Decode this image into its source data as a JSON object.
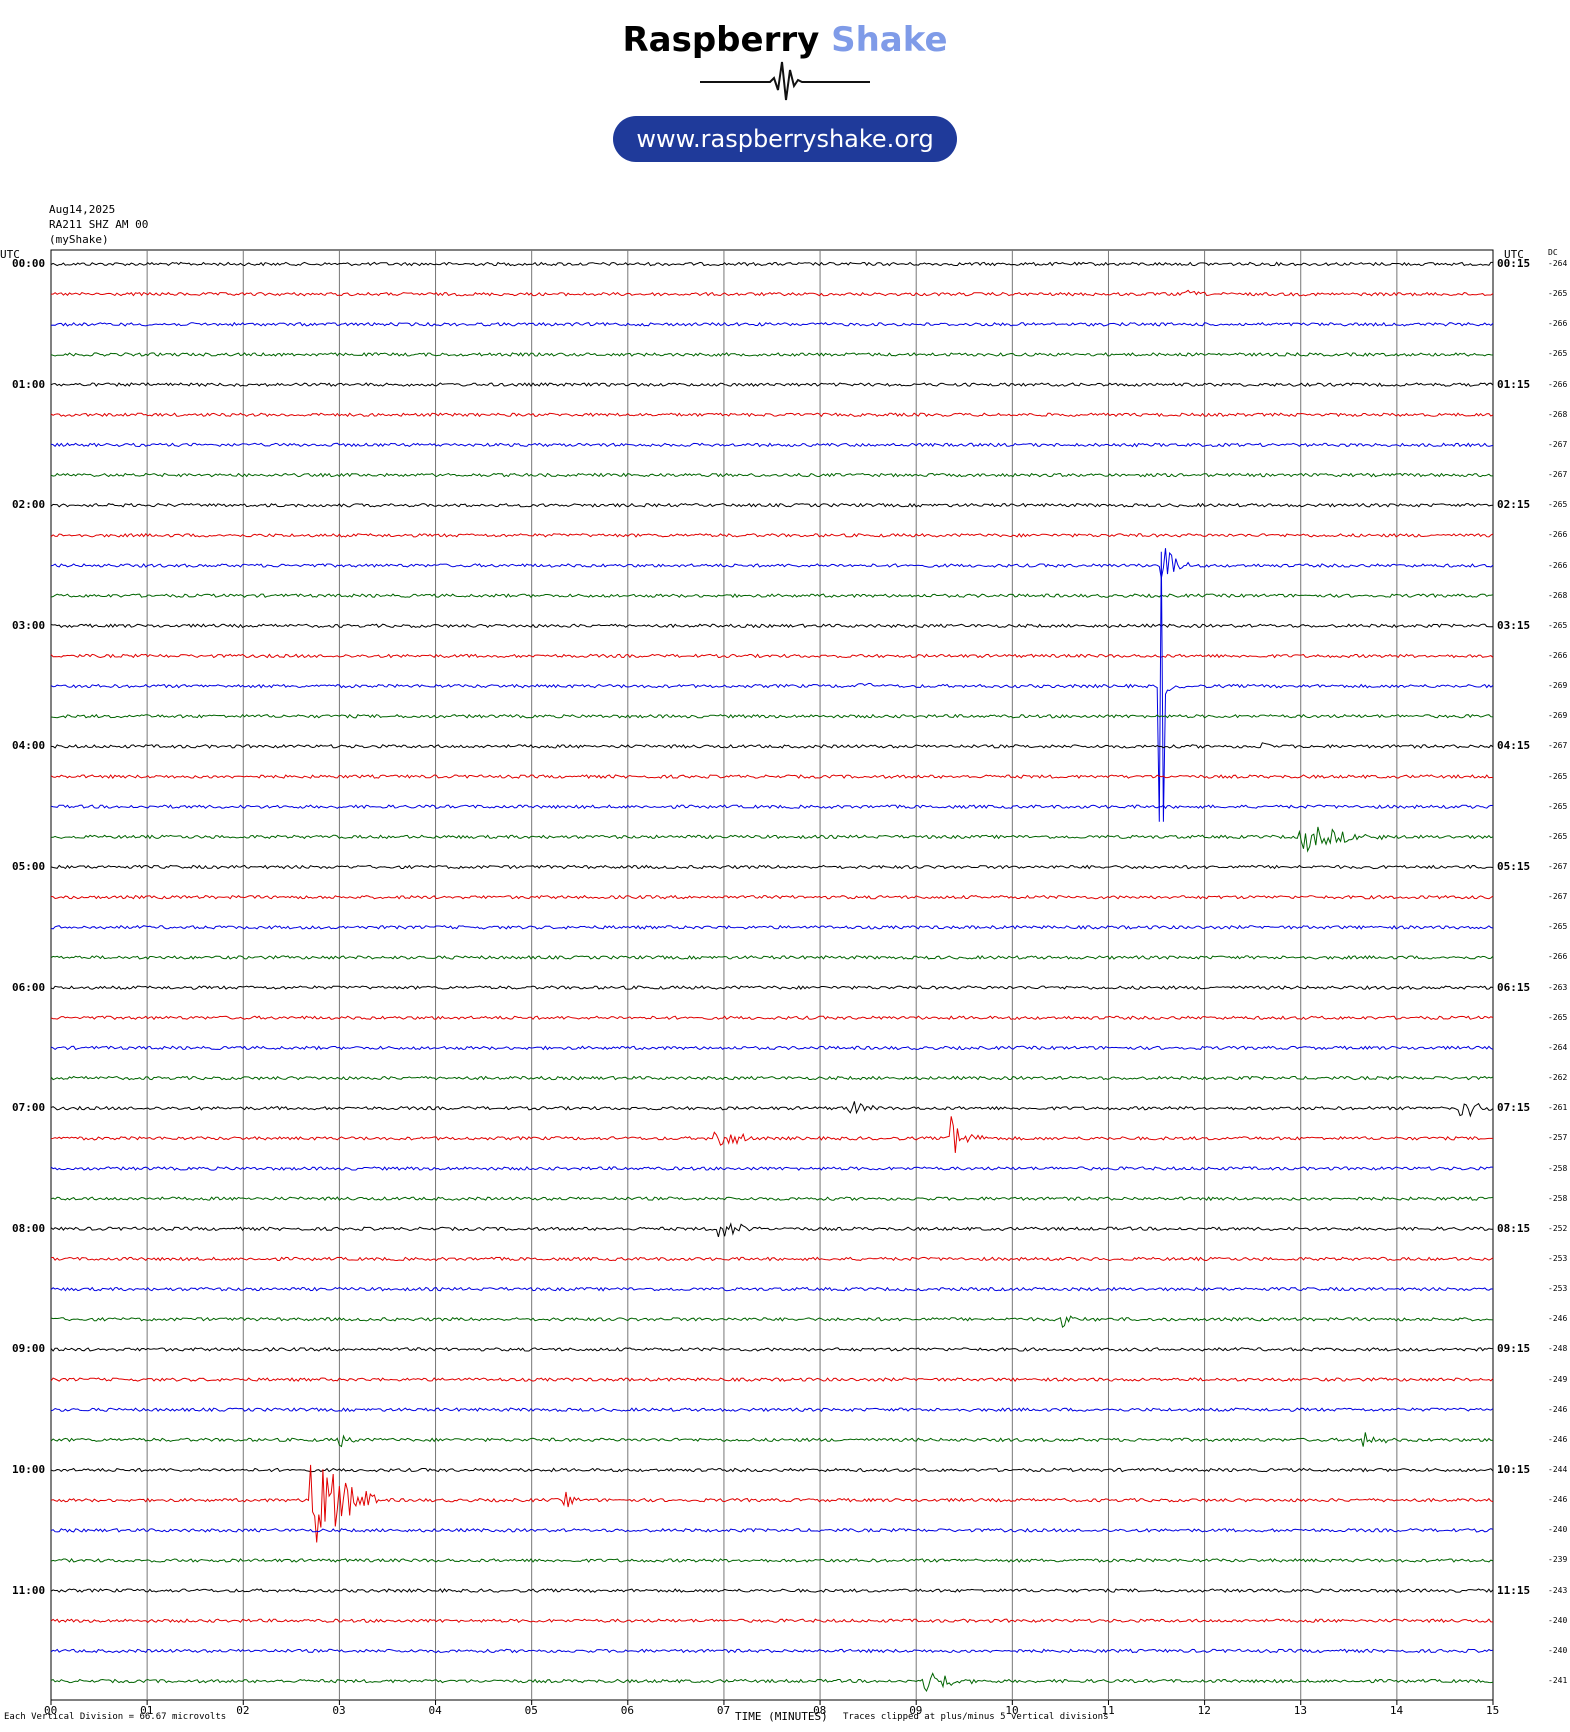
{
  "logo": {
    "title_main": "Raspberry",
    "title_accent": "Shake",
    "url": "www.raspberryshake.org",
    "accent_color": "#7f9be8",
    "url_bg_color": "#1f3a9a"
  },
  "header": {
    "date": "Aug14,2025",
    "station": "RA211 SHZ AM 00",
    "network": "(myShake)"
  },
  "axis": {
    "left_title": "UTC",
    "right_title": "UTC",
    "dc_title": "DC",
    "xlabel": "TIME (MINUTES)",
    "x_ticks": [
      "00",
      "01",
      "02",
      "03",
      "04",
      "05",
      "06",
      "07",
      "08",
      "09",
      "10",
      "11",
      "12",
      "13",
      "14",
      "15"
    ]
  },
  "footer": {
    "scale_note": "Each Vertical Division =   66.67 microvolts",
    "clip_note": "Traces clipped at plus/minus 5 vertical divisions"
  },
  "chart_data": {
    "type": "line",
    "title": "",
    "xlabel": "TIME (MINUTES)",
    "xlim": [
      0,
      15
    ],
    "row_interval_minutes": 15,
    "trace_colors": [
      "#000000",
      "#e00000",
      "#0000e0",
      "#006400"
    ],
    "left_labels": [
      "00:00",
      "01:00",
      "02:00",
      "03:00",
      "04:00",
      "05:00",
      "06:00",
      "07:00",
      "08:00",
      "09:00",
      "10:00",
      "11:00"
    ],
    "right_labels": [
      "00:15",
      "01:15",
      "02:15",
      "03:15",
      "04:15",
      "05:15",
      "06:15",
      "07:15",
      "08:15",
      "09:15",
      "10:15",
      "11:15"
    ],
    "dc_offsets": [
      -264,
      -265,
      -266,
      -265,
      -266,
      -268,
      -267,
      -267,
      -265,
      -266,
      -266,
      -268,
      -265,
      -266,
      -269,
      -269,
      -267,
      -265,
      -265,
      -265,
      -267,
      -267,
      -265,
      -266,
      -263,
      -265,
      -264,
      -262,
      -261,
      -257,
      -258,
      -258,
      -252,
      -253,
      -253,
      -246,
      -248,
      -249,
      -246,
      -246,
      -244,
      -246,
      -240,
      -239,
      -243,
      -240,
      -240,
      -241
    ],
    "events": [
      {
        "row": 1,
        "minute": 11.8,
        "amp": 0.5,
        "dur": 0.2,
        "kind": "step"
      },
      {
        "row": 10,
        "minute": 11.55,
        "amp": 2.0,
        "dur": 0.3,
        "kind": "burst"
      },
      {
        "row": 14,
        "minute": 8.4,
        "amp": 0.6,
        "dur": 0.2,
        "kind": "step"
      },
      {
        "row": 14,
        "minute": 11.55,
        "amp": 5.0,
        "dur": 0.4,
        "kind": "spike"
      },
      {
        "row": 16,
        "minute": 12.6,
        "amp": 0.5,
        "dur": 0.2,
        "kind": "step"
      },
      {
        "row": 19,
        "minute": 13.0,
        "amp": 1.2,
        "dur": 0.9,
        "kind": "burst"
      },
      {
        "row": 28,
        "minute": 8.3,
        "amp": 1.0,
        "dur": 0.3,
        "kind": "burst"
      },
      {
        "row": 28,
        "minute": 14.65,
        "amp": 1.4,
        "dur": 0.4,
        "kind": "burst"
      },
      {
        "row": 29,
        "minute": 6.9,
        "amp": 1.0,
        "dur": 0.5,
        "kind": "burst"
      },
      {
        "row": 29,
        "minute": 9.35,
        "amp": 1.8,
        "dur": 0.4,
        "kind": "burst"
      },
      {
        "row": 32,
        "minute": 6.95,
        "amp": 0.9,
        "dur": 0.5,
        "kind": "burst"
      },
      {
        "row": 35,
        "minute": 10.5,
        "amp": 0.6,
        "dur": 0.4,
        "kind": "burst"
      },
      {
        "row": 39,
        "minute": 3.0,
        "amp": 0.8,
        "dur": 0.2,
        "kind": "burst"
      },
      {
        "row": 39,
        "minute": 13.65,
        "amp": 0.9,
        "dur": 0.3,
        "kind": "burst"
      },
      {
        "row": 41,
        "minute": 2.7,
        "amp": 5.0,
        "dur": 0.7,
        "kind": "burst"
      },
      {
        "row": 41,
        "minute": 5.35,
        "amp": 0.6,
        "dur": 0.3,
        "kind": "burst"
      },
      {
        "row": 47,
        "minute": 9.1,
        "amp": 1.0,
        "dur": 0.6,
        "kind": "burst"
      }
    ]
  }
}
